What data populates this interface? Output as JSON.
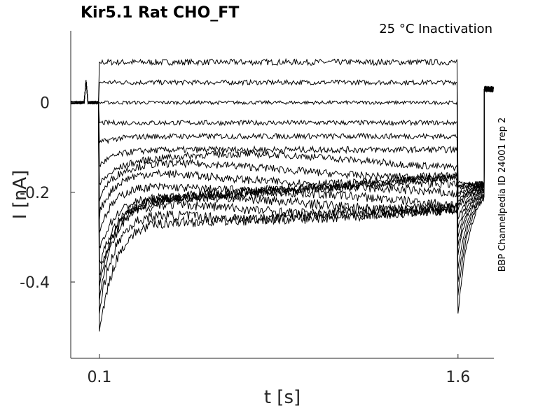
{
  "chart_data": {
    "type": "line",
    "title": "Kir5.1  Rat  CHO_FT",
    "condition": "25 °C  Inactivation",
    "source": "BBP Channelpedia ID 24001 rep 2",
    "xlabel": "t [s]",
    "ylabel": "I [nA]",
    "xlim": [
      -0.02,
      1.75
    ],
    "ylim": [
      -0.57,
      0.16
    ],
    "xticks": [
      0.1,
      1.6
    ],
    "xtick_labels": [
      "0.1",
      "1.6"
    ],
    "yticks": [
      0,
      -0.2,
      -0.4
    ],
    "ytick_labels": [
      "0",
      "-0.2",
      "-0.4"
    ],
    "grid": false,
    "pulse": {
      "start": 0.1,
      "end": 1.6
    },
    "series_step_levels": [
      0.09,
      0.045,
      0.0,
      -0.045,
      -0.075,
      -0.105,
      -0.13,
      -0.15,
      -0.165,
      -0.18,
      -0.195,
      -0.205,
      -0.215,
      -0.225,
      -0.235,
      -0.245,
      -0.25
    ],
    "series_onset_peaks": [
      0.09,
      0.045,
      0.0,
      -0.045,
      -0.09,
      -0.14,
      -0.18,
      -0.22,
      -0.26,
      -0.29,
      -0.32,
      -0.35,
      -0.38,
      -0.41,
      -0.44,
      -0.47,
      -0.51
    ],
    "series_tail_levels": [
      0.03,
      0.03,
      0.03,
      0.03,
      0.03,
      0.03,
      0.03,
      0.03,
      0.03,
      0.03,
      0.03,
      0.03,
      0.03,
      0.03,
      0.03,
      0.03,
      0.03
    ],
    "series_tail_peaks": [
      -0.18,
      -0.185,
      -0.19,
      -0.2,
      -0.21,
      -0.22,
      -0.23,
      -0.24,
      -0.26,
      -0.28,
      -0.3,
      -0.32,
      -0.34,
      -0.37,
      -0.4,
      -0.43,
      -0.47
    ],
    "colors": {
      "trace": "#000000",
      "axis": "#262626"
    }
  }
}
